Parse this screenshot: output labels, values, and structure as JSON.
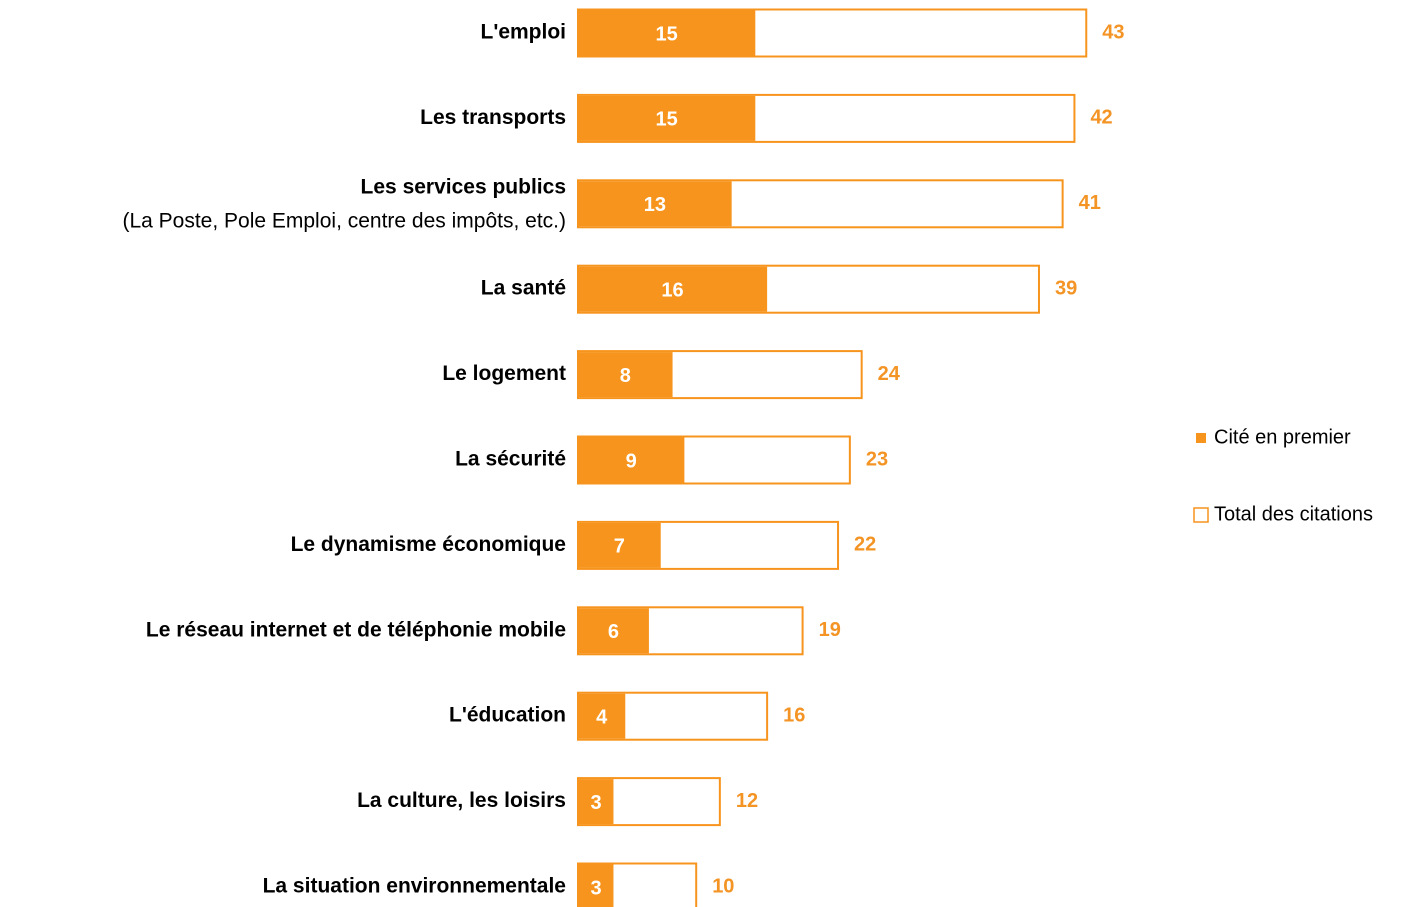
{
  "chart_data": {
    "type": "bar",
    "categories": [
      "L'emploi",
      "Les transports",
      "Les services publics",
      "La santé",
      "Le logement",
      "La sécurité",
      "Le dynamisme économique",
      "Le réseau internet et de téléphonie mobile",
      "L'éducation",
      "La culture, les loisirs",
      "La situation environnementale"
    ],
    "category_notes": [
      null,
      null,
      "(La Poste, Pole Emploi, centre des impôts, etc.)",
      null,
      null,
      null,
      null,
      null,
      null,
      null,
      null
    ],
    "series": [
      {
        "name": "Cité en premier",
        "color": "#f7941d",
        "style": "filled",
        "values": [
          15,
          15,
          13,
          16,
          8,
          9,
          7,
          6,
          4,
          3,
          3
        ]
      },
      {
        "name": "Total des citations",
        "color": "#f7941d",
        "style": "outline",
        "values": [
          43,
          42,
          41,
          39,
          24,
          23,
          22,
          19,
          16,
          12,
          10
        ]
      }
    ],
    "legend": "right"
  }
}
